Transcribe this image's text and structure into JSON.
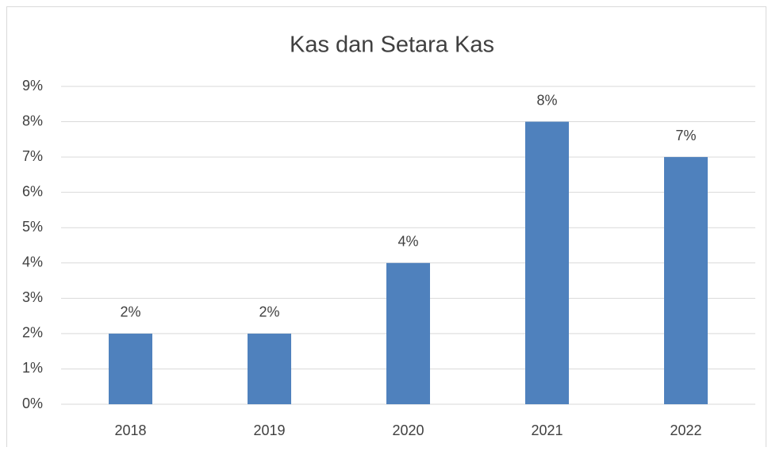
{
  "chart_data": {
    "type": "bar",
    "title": "Kas dan Setara Kas",
    "categories": [
      "2018",
      "2019",
      "2020",
      "2021",
      "2022"
    ],
    "values": [
      2,
      2,
      4,
      8,
      7
    ],
    "value_labels": [
      "2%",
      "2%",
      "4%",
      "8%",
      "7%"
    ],
    "color": "#4f81bd",
    "ylim": [
      0,
      9
    ],
    "yticks": [
      {
        "value": 0,
        "label": "0%"
      },
      {
        "value": 1,
        "label": "1%"
      },
      {
        "value": 2,
        "label": "2%"
      },
      {
        "value": 3,
        "label": "3%"
      },
      {
        "value": 4,
        "label": "4%"
      },
      {
        "value": 5,
        "label": "5%"
      },
      {
        "value": 6,
        "label": "6%"
      },
      {
        "value": 7,
        "label": "7%"
      },
      {
        "value": 8,
        "label": "8%"
      },
      {
        "value": 9,
        "label": "9%"
      }
    ],
    "grid": true
  }
}
